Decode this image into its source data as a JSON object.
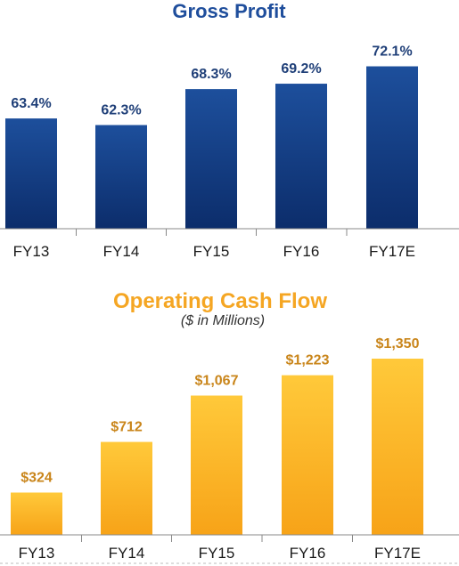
{
  "colors": {
    "gross_bar_top": "#1d4f9c",
    "gross_bar_bottom": "#0c2d6b",
    "gross_title": "#1f4e9c",
    "gross_label": "#1f3f78",
    "ocf_bar_top": "#ffc93a",
    "ocf_bar_bottom": "#f7a318",
    "ocf_title": "#f5a623",
    "ocf_label": "#c9851a",
    "axis": "#888888"
  },
  "chart_data": [
    {
      "type": "bar",
      "title": "Gross Profit",
      "categories": [
        "FY13",
        "FY14",
        "FY15",
        "FY16",
        "FY17E"
      ],
      "values": [
        63.4,
        62.3,
        68.3,
        69.2,
        72.1
      ],
      "value_labels": [
        "63.4%",
        "62.3%",
        "68.3%",
        "69.2%",
        "72.1%"
      ],
      "ylim": [
        45,
        75
      ],
      "grid": false
    },
    {
      "type": "bar",
      "title": "Operating Cash Flow",
      "subtitle": "($ in Millions)",
      "categories": [
        "FY13",
        "FY14",
        "FY15",
        "FY16",
        "FY17E"
      ],
      "values": [
        324,
        712,
        1067,
        1223,
        1350
      ],
      "value_labels": [
        "$324",
        "$712",
        "$1,067",
        "$1,223",
        "$1,350"
      ],
      "ylim": [
        0,
        1500
      ],
      "grid": false
    }
  ]
}
